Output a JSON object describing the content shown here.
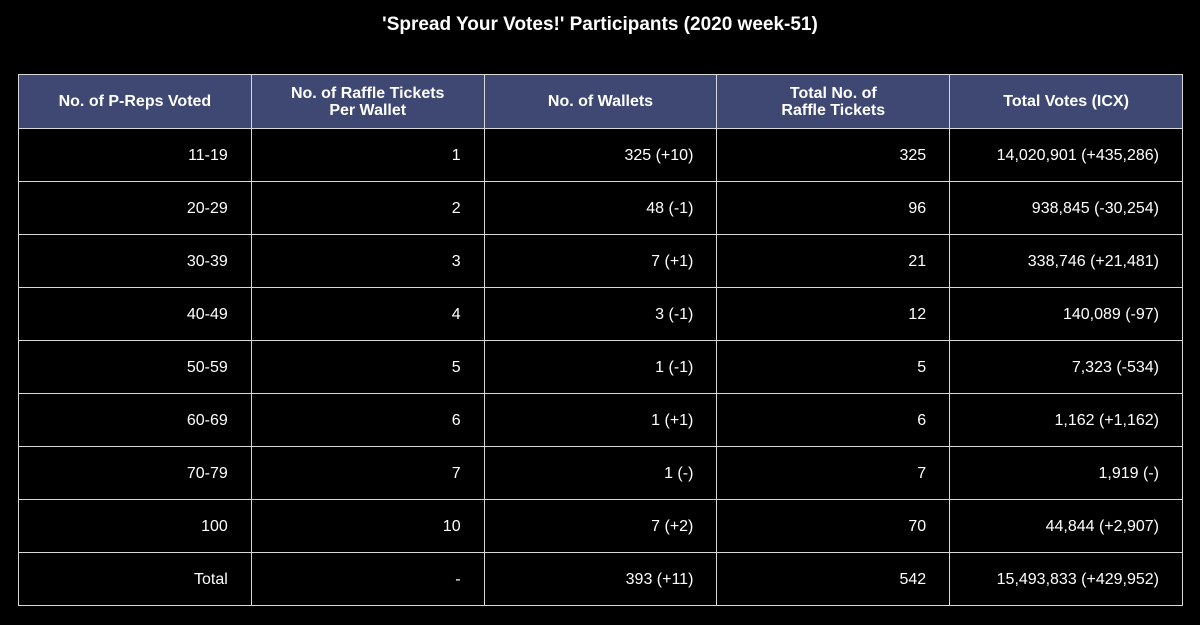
{
  "chart_data": {
    "type": "table",
    "title": "'Spread Your Votes!' Participants (2020 week-51)",
    "columns": [
      "No. of P-Reps Voted",
      "No. of Raffle Tickets\nPer Wallet",
      "No. of Wallets",
      "Total No. of\nRaffle Tickets",
      "Total Votes (ICX)"
    ],
    "rows": [
      [
        "11-19",
        "1",
        "325 (+10)",
        "325",
        "14,020,901 (+435,286)"
      ],
      [
        "20-29",
        "2",
        "48 (-1)",
        "96",
        "938,845 (-30,254)"
      ],
      [
        "30-39",
        "3",
        "7 (+1)",
        "21",
        "338,746 (+21,481)"
      ],
      [
        "40-49",
        "4",
        "3 (-1)",
        "12",
        "140,089 (-97)"
      ],
      [
        "50-59",
        "5",
        "1 (-1)",
        "5",
        "7,323 (-534)"
      ],
      [
        "60-69",
        "6",
        "1 (+1)",
        "6",
        "1,162 (+1,162)"
      ],
      [
        "70-79",
        "7",
        "1 (-)",
        "7",
        "1,919 (-)"
      ],
      [
        "100",
        "10",
        "7 (+2)",
        "70",
        "44,844 (+2,907)"
      ],
      [
        "Total",
        "-",
        "393 (+11)",
        "542",
        "15,493,833 (+429,952)"
      ]
    ],
    "header_color": "#3f4872",
    "cell_color": "#000000",
    "border_color": "#d8d8d8",
    "text_color": "#ffffff"
  }
}
